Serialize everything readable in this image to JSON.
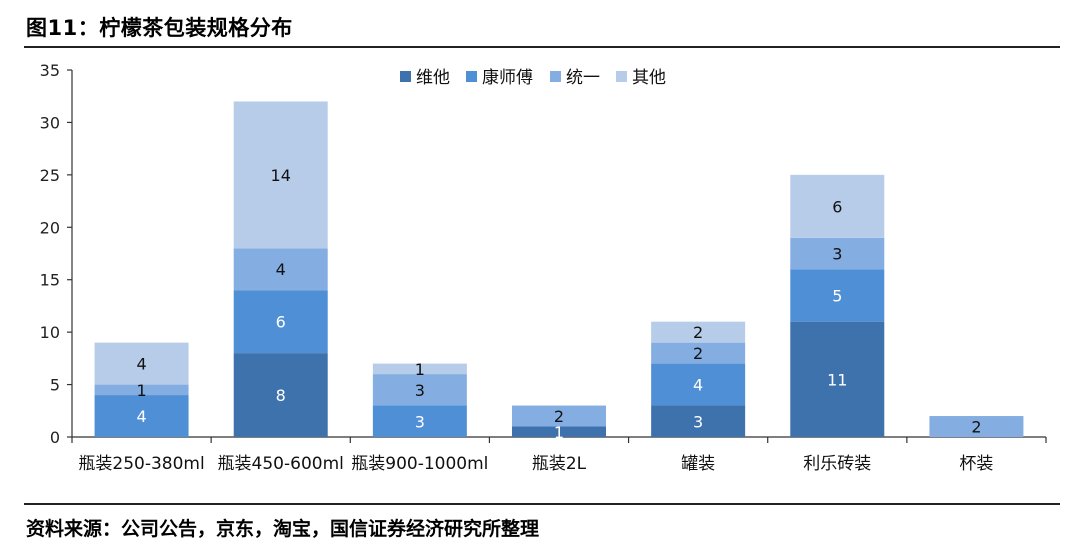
{
  "figure": {
    "title": "图11：柠檬茶包装规格分布",
    "source": "资料来源：公司公告，京东，淘宝，国信证券经济研究所整理"
  },
  "chart_data": {
    "type": "bar",
    "stacked": true,
    "categories": [
      "瓶装250-380ml",
      "瓶装450-600ml",
      "瓶装900-1000ml",
      "瓶装2L",
      "罐装",
      "利乐砖装",
      "杯装"
    ],
    "series": [
      {
        "name": "维他",
        "color": "#3d72ad",
        "values": [
          0,
          8,
          0,
          1,
          3,
          11,
          0
        ],
        "labels": [
          "",
          "8",
          "",
          "1",
          "3",
          "11",
          ""
        ]
      },
      {
        "name": "康师傅",
        "color": "#4f8fd6",
        "values": [
          4,
          6,
          3,
          0,
          4,
          5,
          0
        ],
        "labels": [
          "4",
          "6",
          "3",
          "",
          "4",
          "5",
          ""
        ]
      },
      {
        "name": "统一",
        "color": "#84aee2",
        "values": [
          1,
          4,
          3,
          2,
          2,
          3,
          2
        ],
        "labels": [
          "1",
          "4",
          "3",
          "2",
          "2",
          "3",
          "2"
        ]
      },
      {
        "name": "其他",
        "color": "#b7cce9",
        "values": [
          4,
          14,
          1,
          0,
          2,
          6,
          0
        ],
        "labels": [
          "4",
          "14",
          "1",
          "",
          "2",
          "6",
          ""
        ]
      }
    ],
    "ylim": [
      0,
      35
    ],
    "yticks": [
      "0",
      "5",
      "10",
      "15",
      "20",
      "25",
      "30",
      "35"
    ],
    "legend_position": "top-center",
    "grid": false
  }
}
